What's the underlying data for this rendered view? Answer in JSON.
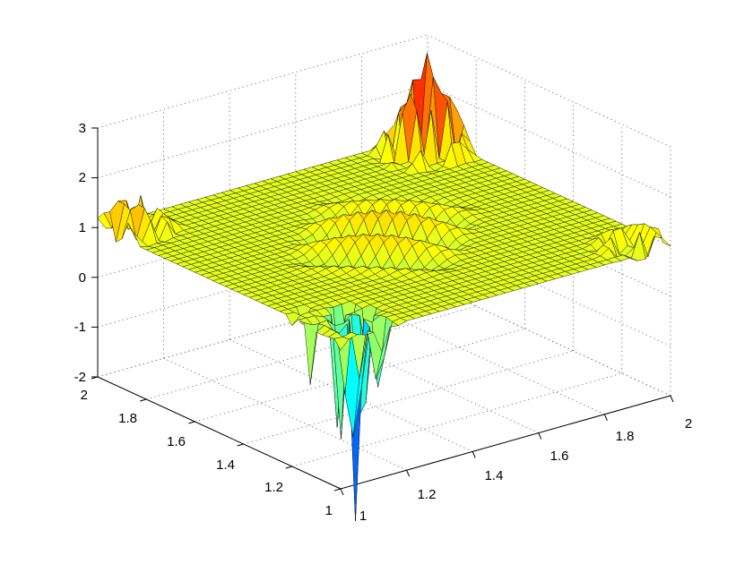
{
  "chart_data": {
    "type": "surface",
    "title": "",
    "xlabel": "",
    "ylabel": "",
    "zlabel": "",
    "xlim": [
      1,
      2
    ],
    "ylim": [
      1,
      2
    ],
    "zlim": [
      -2,
      3
    ],
    "grid": true,
    "colormap": "jet",
    "base_level": 1,
    "x_ticks": [
      "1",
      "1.2",
      "1.4",
      "1.6",
      "1.8",
      "2"
    ],
    "y_ticks": [
      "1",
      "1.2",
      "1.4",
      "1.6",
      "1.8",
      "2"
    ],
    "z_ticks": [
      "-2",
      "-1",
      "0",
      "1",
      "2",
      "3"
    ],
    "grid_resolution": [
      41,
      41
    ],
    "features": [
      {
        "name": "corner spikes at (1,1)",
        "x": 1.08,
        "y": 1.1,
        "peak_max": 0.8,
        "peak_min": -3.0
      },
      {
        "name": "corner spikes at (2,2)",
        "x": 1.92,
        "y": 1.9,
        "peak_max": 3.0,
        "peak_min": 0.4
      },
      {
        "name": "corner bumps at (1,2)",
        "x": 1.05,
        "y": 1.92,
        "peak_max": 2.0,
        "peak_min": 0.7
      },
      {
        "name": "corner bumps at (2,1)",
        "x": 1.94,
        "y": 1.06,
        "peak_max": 1.7,
        "peak_min": 0.6
      },
      {
        "name": "central ripples",
        "x": 1.5,
        "y": 1.5,
        "peak_max": 1.5,
        "peak_min": 0.6
      }
    ]
  }
}
